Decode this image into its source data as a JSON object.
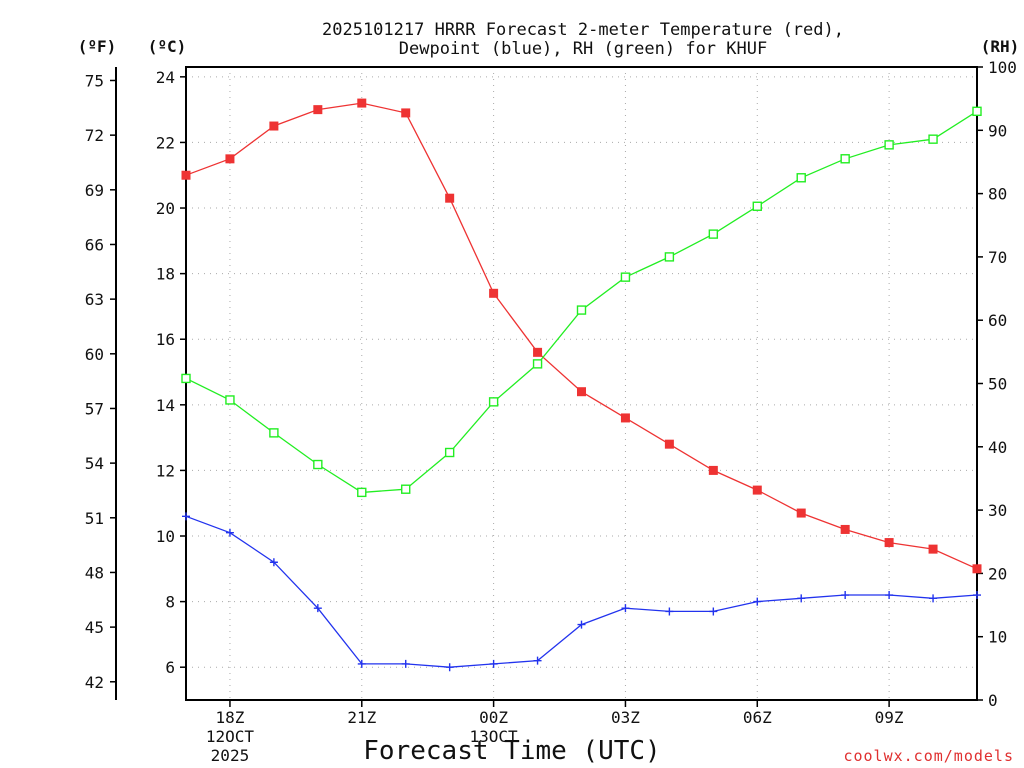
{
  "chart_data": {
    "type": "line",
    "title_line1": "2025101217 HRRR Forecast 2-meter Temperature (red),",
    "title_line2": "Dewpoint (blue), RH (green) for KHUF",
    "xlabel": "Forecast Time (UTC)",
    "credit": "coolwx.com/models",
    "units": {
      "fahrenheit": "(ºF)",
      "celsius": "(ºC)",
      "rh": "(RH)"
    },
    "x_hours": [
      17,
      18,
      19,
      20,
      21,
      22,
      23,
      24,
      25,
      26,
      27,
      28,
      29,
      30,
      31,
      32,
      33,
      34,
      35
    ],
    "xlim": [
      17,
      35
    ],
    "celsius_axis": {
      "ylim": [
        5,
        24.3
      ],
      "ticks": [
        6,
        8,
        10,
        12,
        14,
        16,
        18,
        20,
        22,
        24
      ]
    },
    "fahrenheit_axis": {
      "ticks": [
        42,
        45,
        48,
        51,
        54,
        57,
        60,
        63,
        66,
        69,
        72,
        75
      ]
    },
    "rh_axis": {
      "ylim": [
        0,
        100
      ],
      "ticks": [
        0,
        10,
        20,
        30,
        40,
        50,
        60,
        70,
        80,
        90,
        100
      ]
    },
    "x_ticks": [
      {
        "hour": 18,
        "label": "18Z",
        "sub1": "12OCT",
        "sub2": "2025"
      },
      {
        "hour": 21,
        "label": "21Z",
        "sub1": "",
        "sub2": ""
      },
      {
        "hour": 24,
        "label": "00Z",
        "sub1": "13OCT",
        "sub2": ""
      },
      {
        "hour": 27,
        "label": "03Z",
        "sub1": "",
        "sub2": ""
      },
      {
        "hour": 30,
        "label": "06Z",
        "sub1": "",
        "sub2": ""
      },
      {
        "hour": 33,
        "label": "09Z",
        "sub1": "",
        "sub2": ""
      }
    ],
    "series": [
      {
        "name": "Temperature",
        "axis": "celsius",
        "color": "#ee3333",
        "marker": "filled-square",
        "values": [
          21.0,
          21.5,
          22.5,
          23.0,
          23.2,
          22.9,
          20.3,
          17.4,
          15.6,
          14.4,
          13.6,
          12.8,
          12.0,
          11.4,
          10.7,
          10.2,
          9.8,
          9.6,
          9.0
        ]
      },
      {
        "name": "Dewpoint",
        "axis": "celsius",
        "color": "#2233ee",
        "marker": "plus",
        "values": [
          10.6,
          10.1,
          9.2,
          7.8,
          6.1,
          6.1,
          6.0,
          6.1,
          6.2,
          7.3,
          7.8,
          7.7,
          7.7,
          8.0,
          8.1,
          8.2,
          8.2,
          8.1,
          8.2
        ]
      },
      {
        "name": "RH",
        "axis": "rh",
        "color": "#22ee22",
        "marker": "open-square",
        "values": [
          50.8,
          47.4,
          42.2,
          37.2,
          32.8,
          33.3,
          39.1,
          47.1,
          53.1,
          61.6,
          66.8,
          70.0,
          73.6,
          78.0,
          82.5,
          85.5,
          87.7,
          88.6,
          93.0
        ]
      }
    ]
  }
}
